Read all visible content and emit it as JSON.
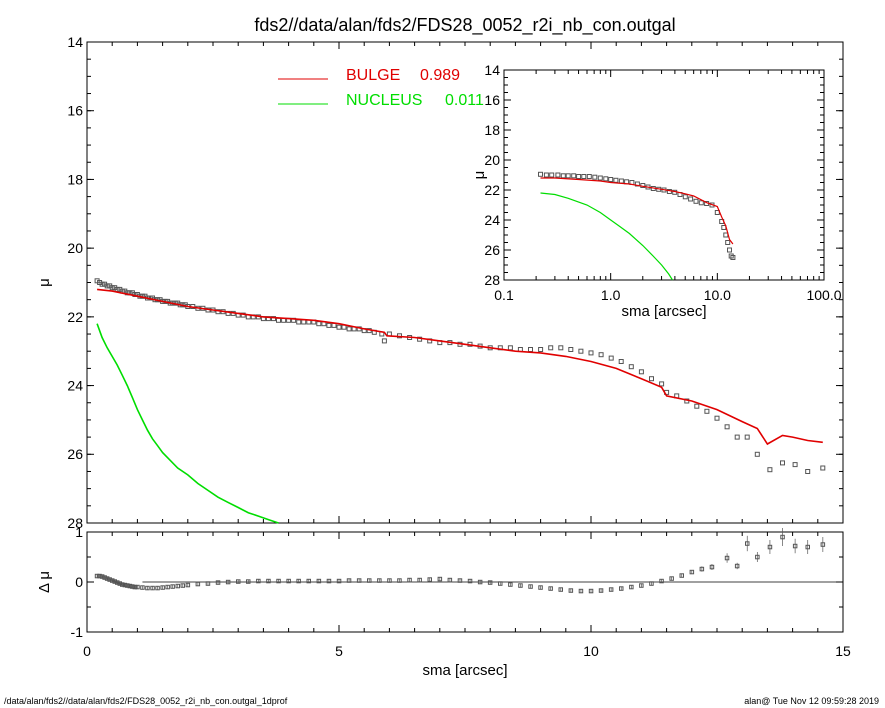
{
  "figure": {
    "title": "fds2//data/alan/fds2/FDS28_0052_r2i_nb_con.outgal",
    "footer_left": "/data/alan/fds2//data/alan/fds2/FDS28_0052_r2i_nb_con.outgal_1dprof",
    "footer_right": "alan@  Tue Nov 12 09:59:28 2019"
  },
  "colors": {
    "bulge": "#e00000",
    "nucleus": "#00dd00",
    "data": "#555555",
    "axes": "#000000"
  },
  "chart_data": [
    {
      "id": "main",
      "type": "scatter",
      "xlabel": "",
      "ylabel": "μ",
      "xlim": [
        0,
        15
      ],
      "ylim": [
        28,
        14
      ],
      "y_inverted": true,
      "x_ticks": [
        0,
        5,
        10,
        15
      ],
      "y_ticks": [
        14,
        16,
        18,
        20,
        22,
        24,
        26,
        28
      ],
      "legend": [
        {
          "label": "BULGE",
          "value": "0.989",
          "color": "#e00000"
        },
        {
          "label": "NUCLEUS",
          "value": "0.011",
          "color": "#00dd00"
        }
      ],
      "series": [
        {
          "name": "data",
          "style": "squares",
          "x": [
            0.2,
            0.25,
            0.3,
            0.35,
            0.4,
            0.45,
            0.5,
            0.55,
            0.6,
            0.65,
            0.7,
            0.75,
            0.8,
            0.85,
            0.9,
            0.95,
            1.0,
            1.05,
            1.1,
            1.15,
            1.2,
            1.25,
            1.3,
            1.35,
            1.4,
            1.45,
            1.5,
            1.55,
            1.6,
            1.65,
            1.7,
            1.75,
            1.8,
            1.85,
            1.9,
            1.95,
            2.0,
            2.1,
            2.2,
            2.3,
            2.4,
            2.5,
            2.6,
            2.7,
            2.8,
            2.9,
            3.0,
            3.1,
            3.2,
            3.3,
            3.4,
            3.5,
            3.6,
            3.7,
            3.8,
            3.9,
            4.0,
            4.1,
            4.2,
            4.3,
            4.4,
            4.5,
            4.6,
            4.7,
            4.8,
            4.9,
            5.0,
            5.1,
            5.2,
            5.3,
            5.4,
            5.5,
            5.6,
            5.7,
            5.85,
            5.9,
            6.0,
            6.2,
            6.4,
            6.6,
            6.8,
            7.0,
            7.2,
            7.4,
            7.6,
            7.8,
            8.0,
            8.2,
            8.4,
            8.6,
            8.8,
            9.0,
            9.2,
            9.4,
            9.6,
            9.8,
            10.0,
            10.2,
            10.4,
            10.6,
            10.8,
            11.0,
            11.2,
            11.4,
            11.5,
            11.7,
            11.9,
            12.1,
            12.3,
            12.5,
            12.7,
            12.9,
            13.1,
            13.3,
            13.55,
            13.8,
            14.05,
            14.3,
            14.6
          ],
          "y": [
            20.95,
            21.0,
            21.05,
            21.05,
            21.1,
            21.1,
            21.15,
            21.15,
            21.2,
            21.2,
            21.25,
            21.25,
            21.3,
            21.3,
            21.3,
            21.35,
            21.35,
            21.4,
            21.4,
            21.4,
            21.45,
            21.45,
            21.45,
            21.5,
            21.5,
            21.5,
            21.55,
            21.55,
            21.55,
            21.6,
            21.6,
            21.6,
            21.6,
            21.65,
            21.65,
            21.65,
            21.7,
            21.7,
            21.75,
            21.75,
            21.8,
            21.8,
            21.85,
            21.85,
            21.9,
            21.9,
            21.95,
            21.95,
            22.0,
            22.0,
            22.0,
            22.05,
            22.05,
            22.05,
            22.1,
            22.1,
            22.1,
            22.1,
            22.15,
            22.15,
            22.15,
            22.15,
            22.2,
            22.2,
            22.25,
            22.25,
            22.3,
            22.3,
            22.35,
            22.35,
            22.35,
            22.4,
            22.4,
            22.45,
            22.5,
            22.7,
            22.5,
            22.55,
            22.6,
            22.65,
            22.7,
            22.75,
            22.75,
            22.8,
            22.8,
            22.85,
            22.9,
            22.9,
            22.9,
            22.95,
            22.95,
            22.95,
            22.9,
            22.9,
            22.95,
            23.0,
            23.05,
            23.1,
            23.2,
            23.3,
            23.45,
            23.6,
            23.8,
            23.95,
            24.2,
            24.3,
            24.45,
            24.6,
            24.75,
            24.95,
            25.2,
            25.5,
            25.5,
            26.0,
            26.45,
            26.25,
            26.3,
            26.5,
            26.4
          ]
        },
        {
          "name": "BULGE",
          "style": "line",
          "color": "#e00000",
          "x": [
            0.2,
            0.5,
            1.0,
            1.5,
            2.0,
            2.5,
            3.0,
            3.5,
            4.0,
            4.5,
            5.0,
            5.5,
            5.9,
            5.95,
            6.5,
            7.0,
            7.5,
            8.0,
            8.5,
            9.0,
            9.5,
            10.0,
            10.5,
            11.0,
            11.4,
            11.5,
            12.0,
            12.5,
            13.0,
            13.3,
            13.5,
            13.8,
            14.0,
            14.3,
            14.6
          ],
          "y": [
            21.2,
            21.25,
            21.4,
            21.55,
            21.7,
            21.8,
            21.9,
            22.0,
            22.05,
            22.1,
            22.2,
            22.35,
            22.45,
            22.55,
            22.6,
            22.7,
            22.8,
            22.9,
            23.0,
            23.05,
            23.15,
            23.3,
            23.5,
            23.8,
            24.05,
            24.3,
            24.45,
            24.7,
            25.05,
            25.25,
            25.7,
            25.45,
            25.5,
            25.6,
            25.65
          ]
        },
        {
          "name": "NUCLEUS",
          "style": "line",
          "color": "#00dd00",
          "x": [
            0.2,
            0.3,
            0.4,
            0.5,
            0.6,
            0.7,
            0.8,
            0.9,
            1.0,
            1.1,
            1.2,
            1.3,
            1.4,
            1.5,
            1.6,
            1.8,
            2.0,
            2.2,
            2.4,
            2.6,
            2.8,
            3.0,
            3.2,
            3.4,
            3.6,
            3.8
          ],
          "y": [
            22.2,
            22.6,
            22.9,
            23.15,
            23.4,
            23.7,
            24.0,
            24.35,
            24.7,
            25.0,
            25.3,
            25.55,
            25.75,
            25.95,
            26.1,
            26.4,
            26.6,
            26.85,
            27.05,
            27.25,
            27.4,
            27.55,
            27.7,
            27.8,
            27.9,
            28.0
          ]
        }
      ]
    },
    {
      "id": "residual",
      "type": "scatter",
      "xlabel": "sma [arcsec]",
      "ylabel": "Δ μ",
      "xlim": [
        0,
        15
      ],
      "ylim": [
        -1,
        1
      ],
      "x_ticks": [
        0,
        5,
        10,
        15
      ],
      "y_ticks": [
        -1,
        0,
        1
      ],
      "zero_line": true,
      "series": [
        {
          "name": "residual",
          "style": "squares",
          "x": [
            0.2,
            0.25,
            0.3,
            0.35,
            0.4,
            0.45,
            0.5,
            0.55,
            0.6,
            0.65,
            0.7,
            0.75,
            0.8,
            0.85,
            0.9,
            0.95,
            1.0,
            1.1,
            1.2,
            1.3,
            1.4,
            1.5,
            1.6,
            1.7,
            1.8,
            1.9,
            2.0,
            2.2,
            2.4,
            2.6,
            2.8,
            3.0,
            3.2,
            3.4,
            3.6,
            3.8,
            4.0,
            4.2,
            4.4,
            4.6,
            4.8,
            5.0,
            5.2,
            5.4,
            5.6,
            5.8,
            6.0,
            6.2,
            6.4,
            6.6,
            6.8,
            7.0,
            7.2,
            7.4,
            7.6,
            7.8,
            8.0,
            8.2,
            8.4,
            8.6,
            8.8,
            9.0,
            9.2,
            9.4,
            9.6,
            9.8,
            10.0,
            10.2,
            10.4,
            10.6,
            10.8,
            11.0,
            11.2,
            11.4,
            11.6,
            11.8,
            12.0,
            12.2,
            12.4,
            12.7,
            12.9,
            13.1,
            13.3,
            13.55,
            13.8,
            14.05,
            14.3,
            14.6
          ],
          "y": [
            0.12,
            0.12,
            0.11,
            0.09,
            0.07,
            0.05,
            0.03,
            0.01,
            -0.01,
            -0.03,
            -0.05,
            -0.06,
            -0.07,
            -0.08,
            -0.09,
            -0.1,
            -0.1,
            -0.11,
            -0.12,
            -0.12,
            -0.12,
            -0.11,
            -0.1,
            -0.09,
            -0.08,
            -0.07,
            -0.06,
            -0.04,
            -0.03,
            -0.01,
            0.0,
            0.01,
            0.01,
            0.02,
            0.02,
            0.02,
            0.02,
            0.02,
            0.02,
            0.02,
            0.02,
            0.02,
            0.03,
            0.03,
            0.03,
            0.03,
            0.03,
            0.03,
            0.04,
            0.04,
            0.05,
            0.06,
            0.04,
            0.03,
            0.02,
            0.0,
            -0.01,
            -0.03,
            -0.05,
            -0.07,
            -0.09,
            -0.11,
            -0.13,
            -0.15,
            -0.17,
            -0.18,
            -0.18,
            -0.17,
            -0.15,
            -0.13,
            -0.1,
            -0.07,
            -0.03,
            0.02,
            0.07,
            0.13,
            0.2,
            0.26,
            0.3,
            0.48,
            0.32,
            0.77,
            0.5,
            0.7,
            0.9,
            0.72,
            0.7,
            0.75
          ]
        }
      ]
    },
    {
      "id": "inset",
      "type": "scatter",
      "xlabel": "sma [arcsec]",
      "ylabel": "μ",
      "xscale": "log",
      "xlim": [
        0.1,
        100.0
      ],
      "ylim": [
        28,
        14
      ],
      "y_inverted": true,
      "x_ticks": [
        0.1,
        1.0,
        10.0,
        100.0
      ],
      "x_tick_labels": [
        "0.1",
        "1.0",
        "10.0",
        "100.0"
      ],
      "y_ticks": [
        14,
        16,
        18,
        20,
        22,
        24,
        26,
        28
      ],
      "series": [
        {
          "name": "data",
          "style": "squares",
          "x": [
            0.22,
            0.25,
            0.28,
            0.32,
            0.36,
            0.4,
            0.45,
            0.5,
            0.56,
            0.63,
            0.71,
            0.8,
            0.9,
            1.0,
            1.12,
            1.26,
            1.41,
            1.58,
            1.78,
            2.0,
            2.24,
            2.51,
            2.82,
            3.16,
            3.55,
            3.98,
            4.47,
            5.01,
            5.62,
            6.31,
            7.08,
            7.94,
            8.91,
            10.0,
            11.0,
            11.5,
            12.0,
            12.5,
            13.0,
            13.5,
            14.0
          ],
          "y": [
            20.95,
            21.0,
            21.0,
            21.0,
            21.05,
            21.05,
            21.05,
            21.1,
            21.1,
            21.1,
            21.15,
            21.2,
            21.25,
            21.3,
            21.35,
            21.4,
            21.45,
            21.5,
            21.6,
            21.7,
            21.8,
            21.9,
            21.95,
            22.0,
            22.1,
            22.15,
            22.3,
            22.45,
            22.6,
            22.75,
            22.85,
            22.9,
            23.0,
            23.5,
            24.1,
            24.5,
            25.0,
            25.5,
            26.0,
            26.4,
            26.5
          ]
        },
        {
          "name": "BULGE",
          "style": "line",
          "color": "#e00000",
          "x": [
            0.22,
            0.3,
            0.5,
            0.8,
            1.0,
            1.5,
            2.0,
            3.0,
            4.0,
            5.0,
            6.0,
            8.0,
            10.0,
            11.0,
            12.0,
            13.0,
            14.0
          ],
          "y": [
            21.2,
            21.2,
            21.3,
            21.4,
            21.5,
            21.6,
            21.75,
            21.95,
            22.1,
            22.25,
            22.4,
            22.85,
            23.1,
            23.8,
            24.4,
            25.3,
            25.6
          ]
        },
        {
          "name": "NUCLEUS",
          "style": "line",
          "color": "#00dd00",
          "x": [
            0.22,
            0.3,
            0.4,
            0.6,
            0.8,
            1.0,
            1.2,
            1.5,
            2.0,
            2.5,
            3.0,
            3.5,
            3.8
          ],
          "y": [
            22.2,
            22.3,
            22.55,
            23.0,
            23.5,
            24.0,
            24.4,
            24.9,
            25.7,
            26.4,
            27.0,
            27.6,
            28.0
          ]
        }
      ]
    }
  ]
}
